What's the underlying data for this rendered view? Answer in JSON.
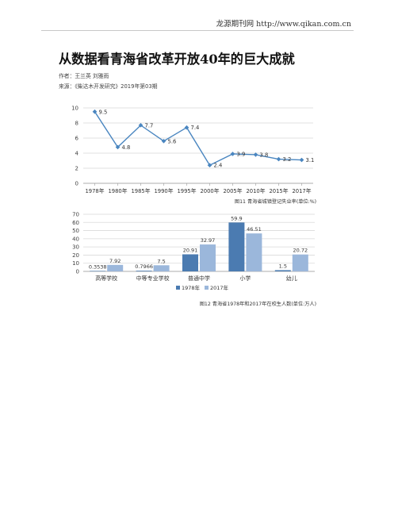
{
  "header": {
    "site_label": "龙源期刊网 http://www.qikan.com.cn"
  },
  "article": {
    "title": "从数据看青海省改革开放40年的巨大成就",
    "author_line": "作者：王兰英 刘雅雨",
    "source_line": "来源：《柴达木开发研究》2019年第03期"
  },
  "chart_data": [
    {
      "type": "line",
      "title": "",
      "caption": "图11  青海省城镇登记失业率(单位:%)",
      "categories": [
        "1978年",
        "1980年",
        "1985年",
        "1990年",
        "1995年",
        "2000年",
        "2005年",
        "2010年",
        "2015年",
        "2017年"
      ],
      "values": [
        9.5,
        4.8,
        7.7,
        5.6,
        7.4,
        2.4,
        3.9,
        3.8,
        3.2,
        3.1
      ],
      "value_labels": [
        "9.5",
        "4.8",
        "7.7",
        "5.6",
        "7.4",
        "2.4",
        "3.9",
        "3.8",
        "3.2",
        "3.1"
      ],
      "ylim": [
        0,
        10
      ],
      "yticks": [
        "0",
        "2",
        "4",
        "6",
        "8",
        "10"
      ],
      "grid": true,
      "colors": {
        "line": "#4a86c0",
        "grid": "#d9d9d9"
      }
    },
    {
      "type": "bar",
      "title": "",
      "caption": "图12  青海省1978年和2017年在校生人数(单位:万人)",
      "categories": [
        "高等学校",
        "中等专业学校",
        "普通中学",
        "小学",
        "幼儿"
      ],
      "series": [
        {
          "name": "1978年",
          "values": [
            0.3538,
            0.7966,
            20.91,
            59.9,
            1.5
          ],
          "labels": [
            "0.3538",
            "0.7966",
            "20.91",
            "59.9",
            "1.5"
          ],
          "color": "#4b7bb1"
        },
        {
          "name": "2017年",
          "values": [
            7.92,
            7.5,
            32.97,
            46.51,
            20.72
          ],
          "labels": [
            "7.92",
            "7.5",
            "32.97",
            "46.51",
            "20.72"
          ],
          "color": "#9bb7db"
        }
      ],
      "ylim": [
        0,
        70
      ],
      "yticks": [
        "0",
        "10",
        "20",
        "30",
        "40",
        "50",
        "60",
        "70"
      ],
      "grid": true,
      "legend_position": "bottom"
    }
  ]
}
